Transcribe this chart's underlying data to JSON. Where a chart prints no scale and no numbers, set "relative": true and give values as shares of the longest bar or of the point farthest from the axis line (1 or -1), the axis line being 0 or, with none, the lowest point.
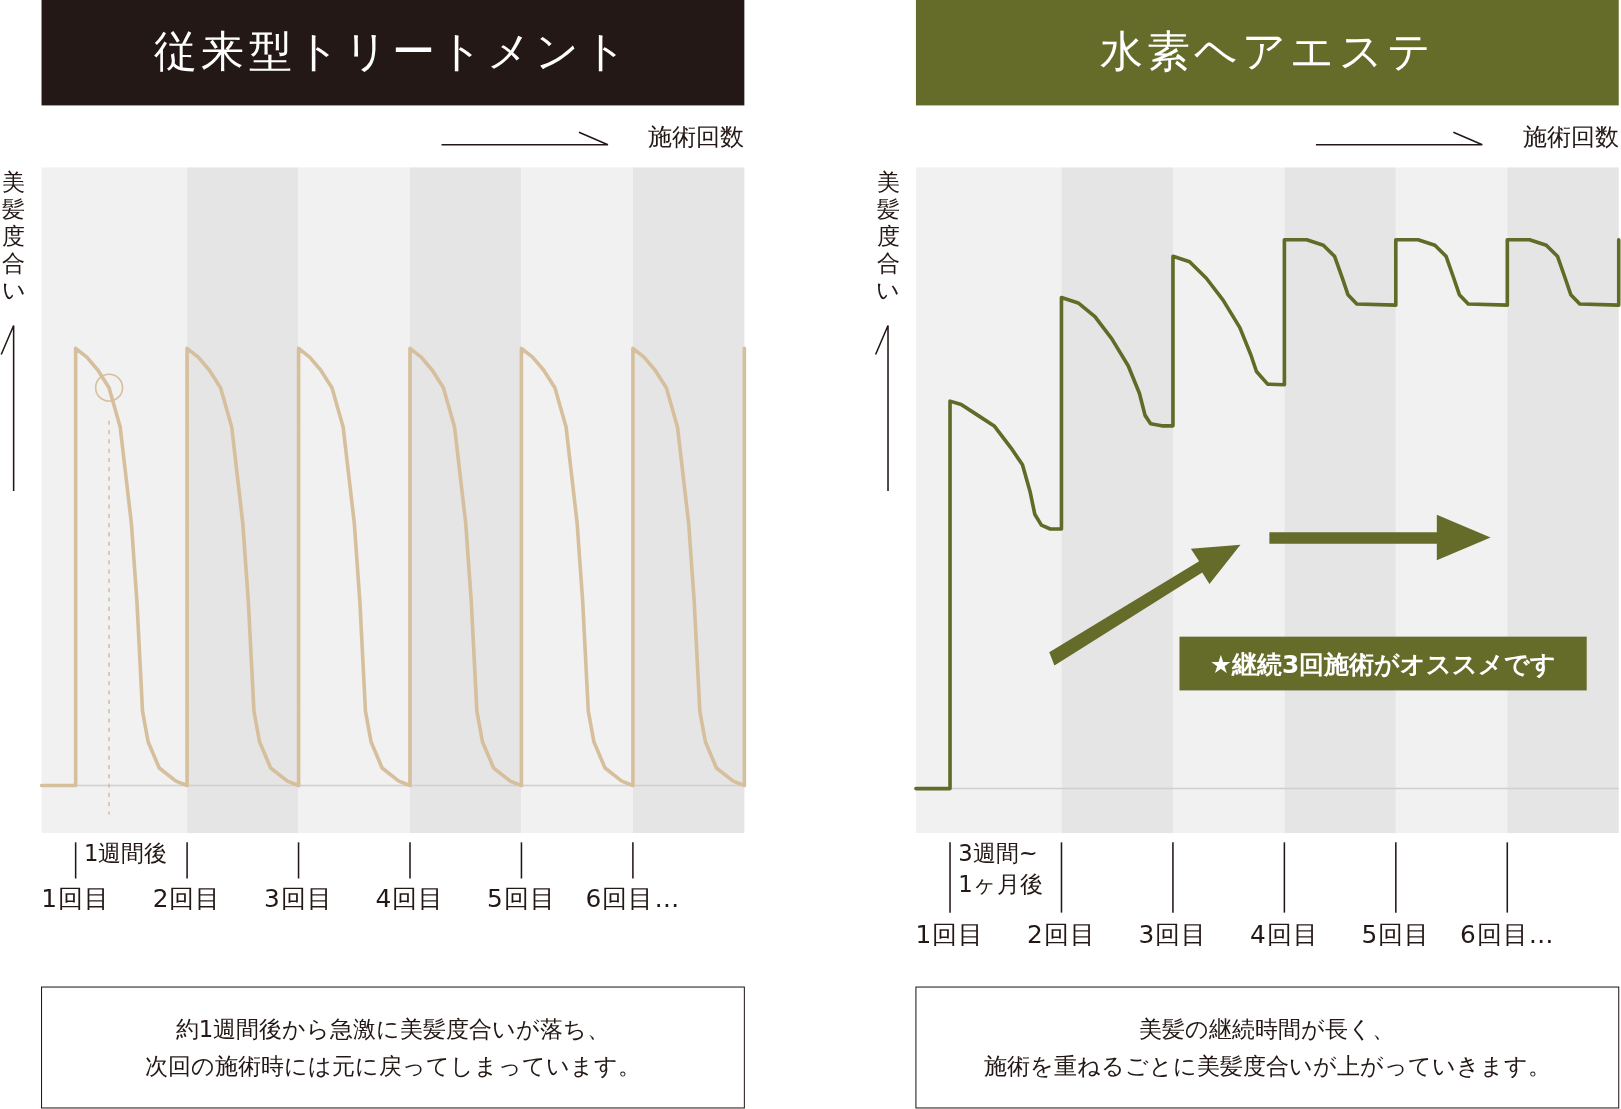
{
  "chart_data": [
    {
      "type": "line",
      "relative": true,
      "title": "従来型トリートメント",
      "xlabel": "施術回数",
      "ylabel": "美髪度合い",
      "xlim": [
        0.694,
        7
      ],
      "xticks": [
        {
          "value": 1,
          "label": "1回目"
        },
        {
          "value": 2,
          "label": "2回目"
        },
        {
          "value": 3,
          "label": "3回目"
        },
        {
          "value": 4,
          "label": "4回目"
        },
        {
          "value": 5,
          "label": "5回目"
        },
        {
          "value": 6,
          "label": "6回目…"
        }
      ],
      "bands": [
        {
          "axis": "x",
          "from": 0.694,
          "to": 2,
          "color": "#f1f1f1"
        },
        {
          "axis": "x",
          "from": 2,
          "to": 3,
          "color": "#e5e5e5"
        },
        {
          "axis": "x",
          "from": 3,
          "to": 4,
          "color": "#f1f1f1"
        },
        {
          "axis": "x",
          "from": 4,
          "to": 5,
          "color": "#e5e5e5"
        },
        {
          "axis": "x",
          "from": 5,
          "to": 6,
          "color": "#f1f1f1"
        },
        {
          "axis": "x",
          "from": 6,
          "to": 7,
          "color": "#e5e5e5"
        }
      ],
      "ref_lines": [
        {
          "axis": "x",
          "value": 1.3,
          "color": "#d6bf9c",
          "line_style": "dashed"
        }
      ],
      "series": [
        {
          "type": "line",
          "color": "#d6bf9c",
          "x": [
            0.694,
            1,
            1,
            1.1,
            1.2,
            1.3,
            1.4,
            1.5,
            1.55,
            1.6,
            1.65,
            1.75,
            1.9,
            2,
            2,
            2.1,
            2.2,
            2.3,
            2.4,
            2.5,
            2.55,
            2.6,
            2.65,
            2.75,
            2.9,
            3,
            3,
            3.1,
            3.2,
            3.3,
            3.4,
            3.5,
            3.55,
            3.6,
            3.65,
            3.75,
            3.9,
            4,
            4,
            4.1,
            4.2,
            4.3,
            4.4,
            4.5,
            4.55,
            4.6,
            4.65,
            4.75,
            4.9,
            5,
            5,
            5.1,
            5.2,
            5.3,
            5.4,
            5.5,
            5.55,
            5.6,
            5.65,
            5.75,
            5.9,
            6,
            6,
            6.1,
            6.2,
            6.3,
            6.4,
            6.5,
            6.55,
            6.6,
            6.65,
            6.75,
            6.9,
            7,
            7
          ],
          "values": [
            0,
            0,
            1,
            0.98,
            0.95,
            0.91,
            0.82,
            0.6,
            0.42,
            0.17,
            0.1,
            0.04,
            0.01,
            0,
            1,
            0.98,
            0.95,
            0.91,
            0.82,
            0.6,
            0.42,
            0.17,
            0.1,
            0.04,
            0.01,
            0,
            1,
            0.98,
            0.95,
            0.91,
            0.82,
            0.6,
            0.42,
            0.17,
            0.1,
            0.04,
            0.01,
            0,
            1,
            0.98,
            0.95,
            0.91,
            0.82,
            0.6,
            0.42,
            0.17,
            0.1,
            0.04,
            0.01,
            0,
            1,
            0.98,
            0.95,
            0.91,
            0.82,
            0.6,
            0.42,
            0.17,
            0.1,
            0.04,
            0.01,
            0,
            1,
            0.98,
            0.95,
            0.91,
            0.82,
            0.6,
            0.42,
            0.17,
            0.1,
            0.04,
            0.01,
            0,
            1
          ]
        },
        {
          "type": "scatter",
          "color": "#d6bf9c",
          "marker": "circle",
          "x": [
            1.3
          ],
          "values": [
            0.91
          ]
        }
      ],
      "annotations": [
        "1週間後",
        "約1週間後から急激に美髪度合いが落ち、次回の施術時には元に戻ってしまっています。"
      ]
    },
    {
      "type": "line",
      "relative": true,
      "title": "水素ヘアエステ",
      "xlabel": "施術回数",
      "ylabel": "美髪度合い",
      "xlim": [
        0.694,
        7
      ],
      "xticks": [
        {
          "value": 1,
          "label": "1回目"
        },
        {
          "value": 2,
          "label": "2回目"
        },
        {
          "value": 3,
          "label": "3回目"
        },
        {
          "value": 4,
          "label": "4回目"
        },
        {
          "value": 5,
          "label": "5回目"
        },
        {
          "value": 6,
          "label": "6回目…"
        }
      ],
      "bands": [
        {
          "axis": "x",
          "from": 0.694,
          "to": 2,
          "color": "#f1f1f1"
        },
        {
          "axis": "x",
          "from": 2,
          "to": 3,
          "color": "#e5e5e5"
        },
        {
          "axis": "x",
          "from": 3,
          "to": 4,
          "color": "#f1f1f1"
        },
        {
          "axis": "x",
          "from": 4,
          "to": 5,
          "color": "#e5e5e5"
        },
        {
          "axis": "x",
          "from": 5,
          "to": 6,
          "color": "#f1f1f1"
        },
        {
          "axis": "x",
          "from": 6,
          "to": 7,
          "color": "#e5e5e5"
        }
      ],
      "series": [
        {
          "type": "line",
          "color": "#5f6b26",
          "x": [
            0.694,
            1,
            1,
            1.1,
            1.25,
            1.4,
            1.55,
            1.65,
            1.72,
            1.76,
            1.82,
            1.9,
            2,
            2,
            2.15,
            2.3,
            2.45,
            2.6,
            2.7,
            2.75,
            2.8,
            2.9,
            3,
            3,
            3.15,
            3.3,
            3.45,
            3.6,
            3.7,
            3.75,
            3.85,
            4,
            4,
            4.2,
            4.35,
            4.45,
            4.52,
            4.57,
            4.65,
            5,
            5,
            5.2,
            5.35,
            5.45,
            5.52,
            5.57,
            5.65,
            6,
            6,
            6.2,
            6.35,
            6.45,
            6.52,
            6.57,
            6.65,
            7,
            7
          ],
          "values": [
            0,
            0,
            0.706,
            0.7,
            0.68,
            0.66,
            0.62,
            0.59,
            0.54,
            0.5,
            0.48,
            0.473,
            0.473,
            0.895,
            0.885,
            0.86,
            0.82,
            0.77,
            0.72,
            0.68,
            0.665,
            0.661,
            0.661,
            0.97,
            0.96,
            0.93,
            0.89,
            0.84,
            0.79,
            0.76,
            0.737,
            0.736,
            1,
            1,
            0.99,
            0.97,
            0.93,
            0.9,
            0.883,
            0.881,
            1,
            1,
            0.99,
            0.97,
            0.93,
            0.9,
            0.883,
            0.881,
            1,
            1,
            0.99,
            0.97,
            0.93,
            0.9,
            0.883,
            0.881,
            1
          ]
        }
      ],
      "annotations": [
        "3週間~1ヶ月後",
        "美髪の継続時間が長く、施術を重ねるごとに美髪度合いが上がっていきます。",
        "★継続3回施術がオススメです"
      ]
    }
  ]
}
